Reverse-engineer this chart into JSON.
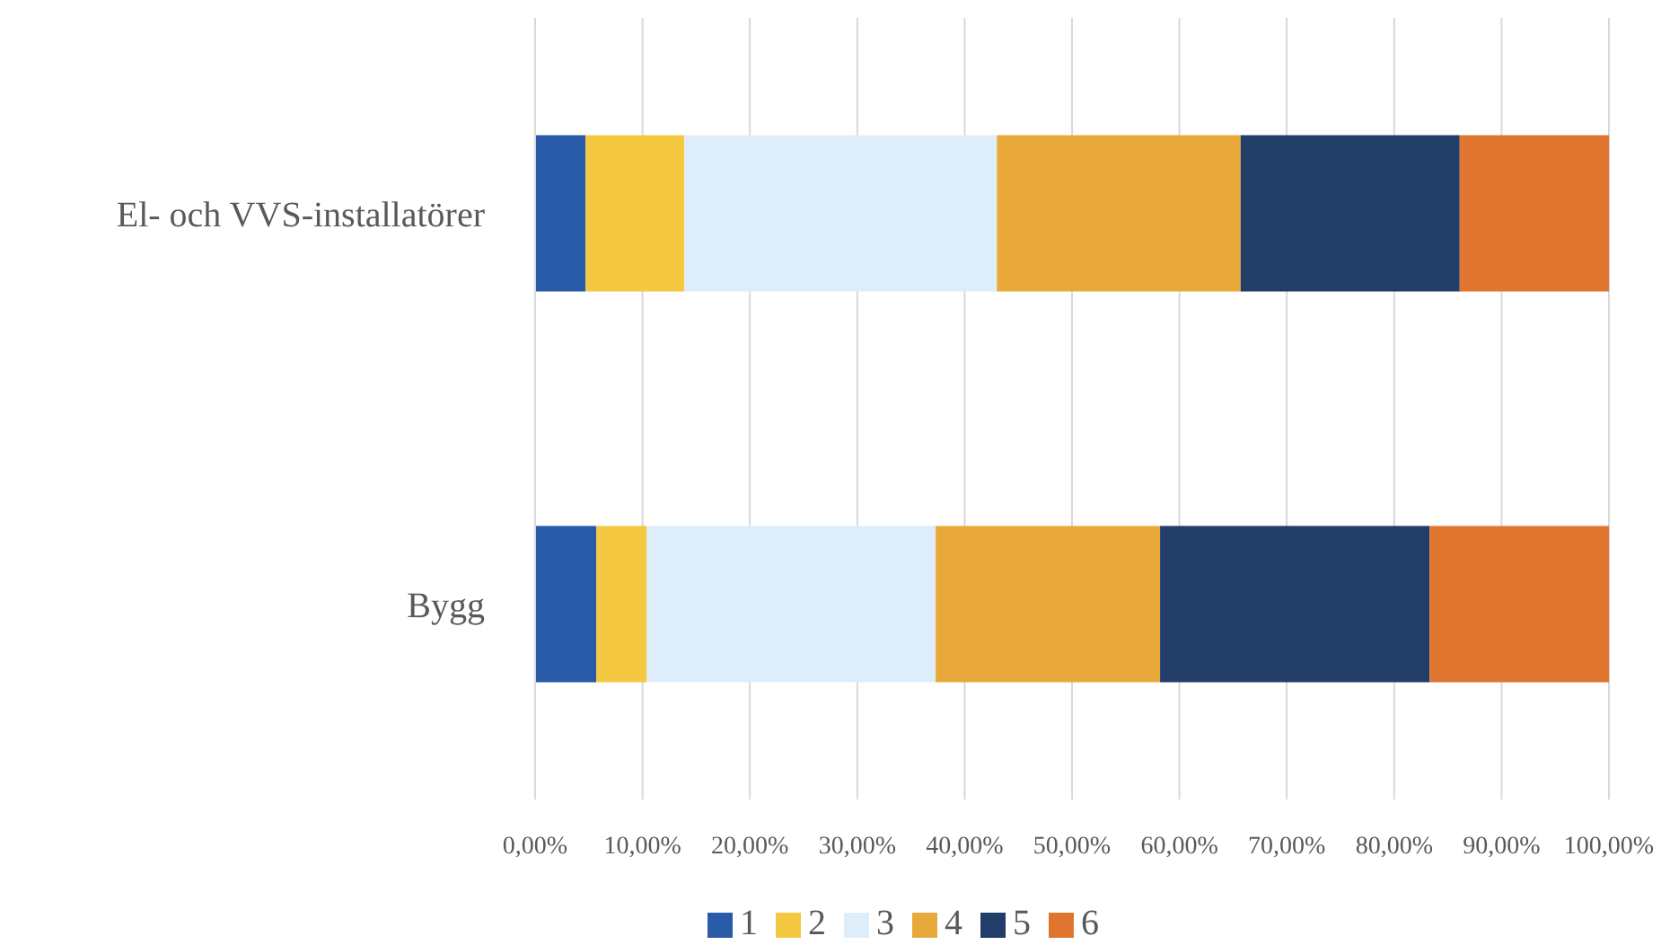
{
  "chart_data": {
    "type": "bar",
    "orientation": "horizontal",
    "stacked": true,
    "categories": [
      "El- och VVS-installatörer",
      "Bygg"
    ],
    "series": [
      {
        "name": "1",
        "color": "#2a5ba8",
        "values": [
          4.7,
          5.7
        ]
      },
      {
        "name": "2",
        "color": "#f5c842",
        "values": [
          9.2,
          4.7
        ]
      },
      {
        "name": "3",
        "color": "#ddeefa",
        "values": [
          29.1,
          26.9
        ]
      },
      {
        "name": "4",
        "color": "#e8a93a",
        "values": [
          22.7,
          20.9
        ]
      },
      {
        "name": "5",
        "color": "#213d68",
        "values": [
          20.4,
          25.1
        ]
      },
      {
        "name": "6",
        "color": "#e07530",
        "values": [
          13.9,
          16.7
        ]
      }
    ],
    "xlim": [
      0,
      100
    ],
    "xticks": [
      {
        "value": 0,
        "label": "0,00%"
      },
      {
        "value": 10,
        "label": "10,00%"
      },
      {
        "value": 20,
        "label": "20,00%"
      },
      {
        "value": 30,
        "label": "30,00%"
      },
      {
        "value": 40,
        "label": "40,00%"
      },
      {
        "value": 50,
        "label": "50,00%"
      },
      {
        "value": 60,
        "label": "60,00%"
      },
      {
        "value": 70,
        "label": "70,00%"
      },
      {
        "value": 80,
        "label": "80,00%"
      },
      {
        "value": 90,
        "label": "90,00%"
      },
      {
        "value": 100,
        "label": "100,00%"
      }
    ],
    "grid": "x",
    "legend": "bottom"
  }
}
